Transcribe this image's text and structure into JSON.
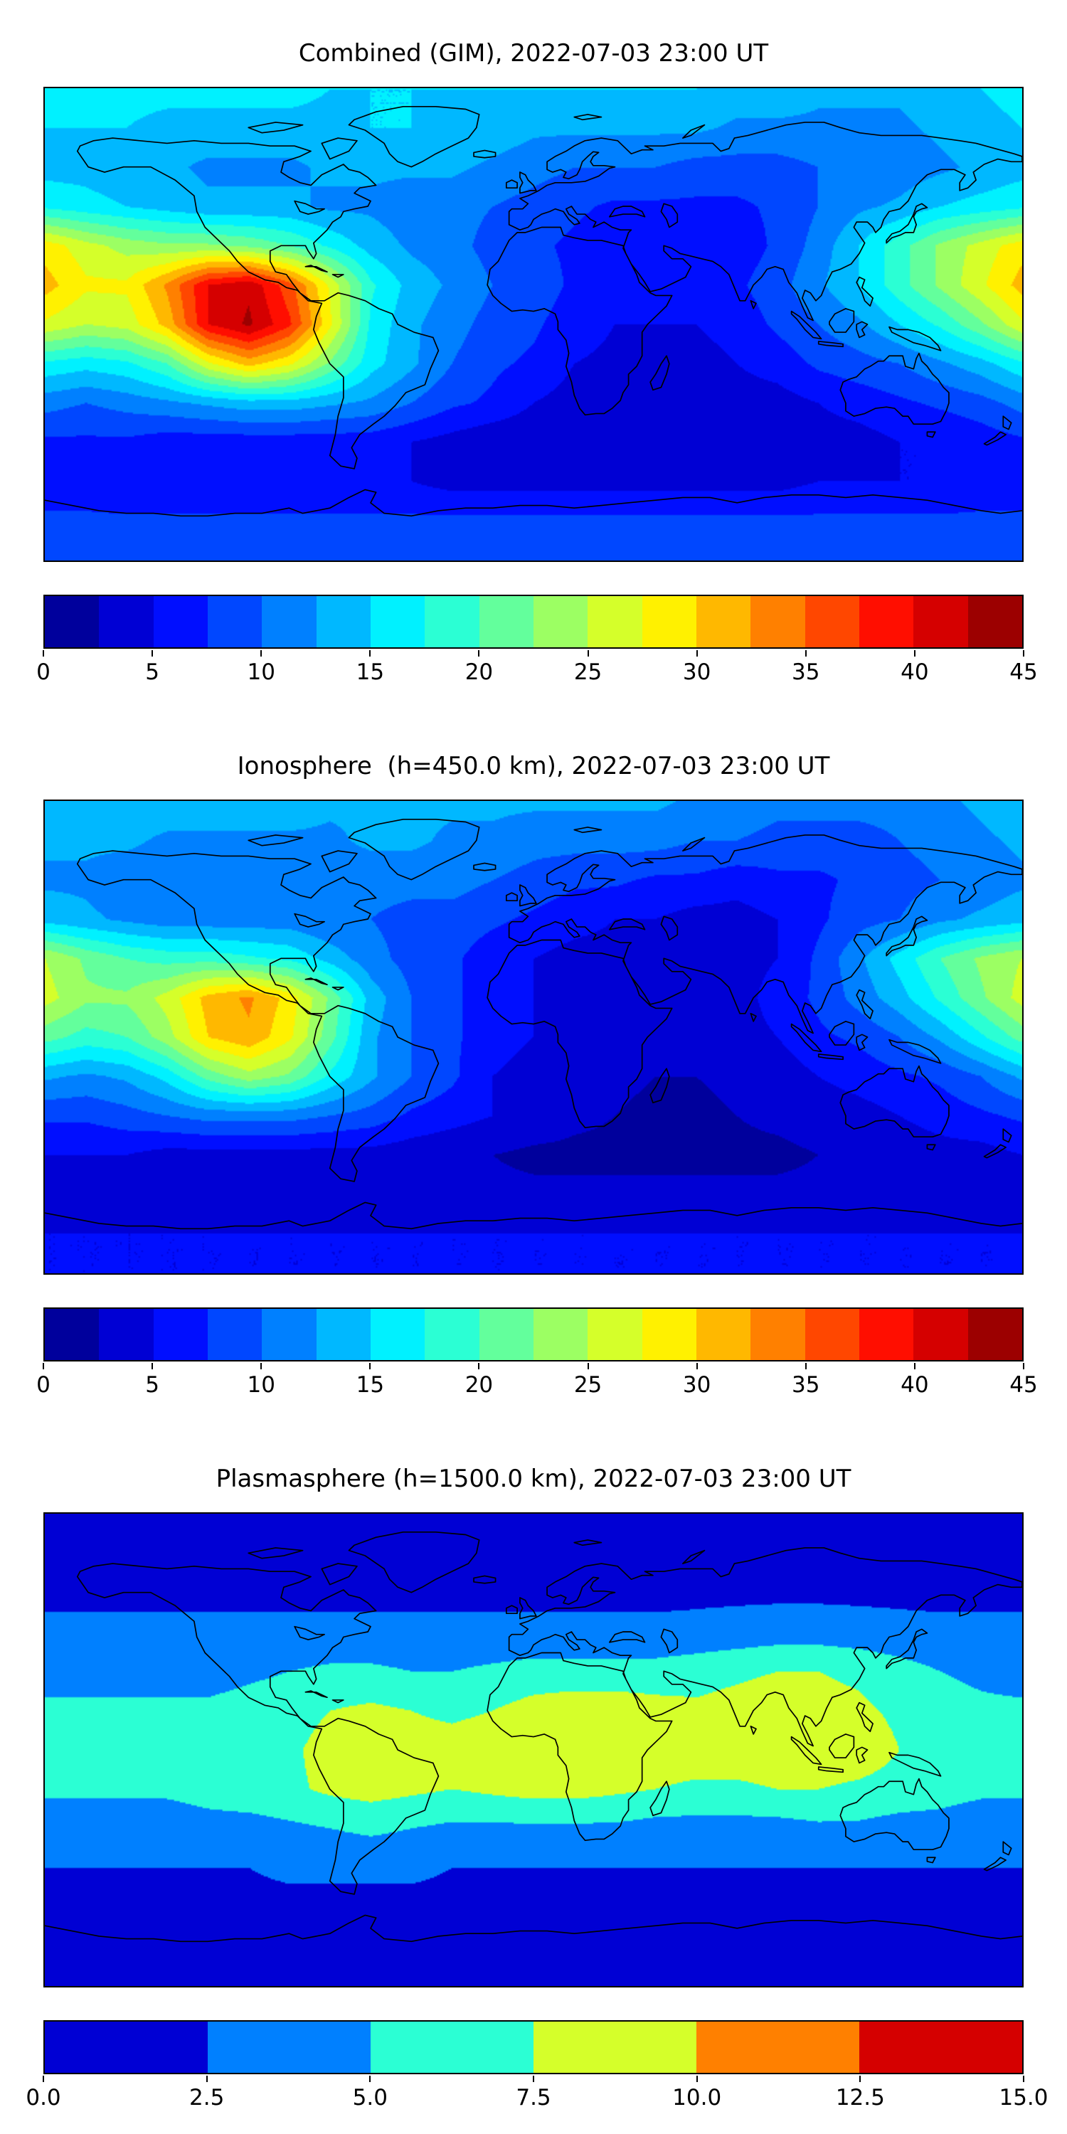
{
  "figure": {
    "background": "#ffffff",
    "text_color": "#000000",
    "frame_color": "#000000",
    "coastline_color": "#000000",
    "colormap": "jet"
  },
  "chart_data": [
    {
      "type": "heatmap",
      "title": "Combined (GIM), 2022-07-03 23:00 UT",
      "colormap": "jet",
      "projection": "world equirectangular",
      "vmin": 0,
      "vmax": 45,
      "levels": 18,
      "xlabel": "",
      "ylabel": "",
      "legend_position": "colorbar-bottom",
      "colorbar_ticks": {
        "values": [
          0,
          5,
          10,
          15,
          20,
          25,
          30,
          35,
          40,
          45
        ],
        "labels": [
          "0",
          "5",
          "10",
          "15",
          "20",
          "25",
          "30",
          "35",
          "40",
          "45"
        ]
      },
      "lons": [
        -180,
        -165,
        -150,
        -135,
        -120,
        -105,
        -90,
        -75,
        -60,
        -45,
        -30,
        -15,
        0,
        15,
        30,
        45,
        60,
        75,
        90,
        105,
        120,
        135,
        150,
        165,
        180
      ],
      "lats": [
        90,
        75,
        60,
        45,
        30,
        15,
        0,
        -15,
        -30,
        -45,
        -60,
        -75,
        -90
      ],
      "values": [
        [
          16,
          16,
          16,
          16,
          16,
          16,
          16,
          15,
          15,
          15,
          15,
          15,
          15,
          15,
          15,
          15,
          15,
          14,
          14,
          13,
          13,
          13,
          14,
          15,
          16
        ],
        [
          15,
          15,
          15,
          14,
          14,
          14,
          14,
          14,
          15,
          15,
          14,
          14,
          13,
          13,
          13,
          13,
          13,
          12,
          12,
          12,
          12,
          12,
          13,
          14,
          15
        ],
        [
          14,
          14,
          13,
          13,
          12,
          12,
          12,
          13,
          13,
          13,
          13,
          12,
          11,
          10,
          10,
          10,
          9,
          9,
          9,
          10,
          10,
          11,
          12,
          13,
          14
        ],
        [
          17,
          16,
          15,
          14,
          13,
          13,
          13,
          12,
          12,
          11,
          11,
          10,
          9,
          8,
          7,
          7,
          7,
          7,
          8,
          10,
          12,
          13,
          15,
          16,
          17
        ],
        [
          29,
          26,
          24,
          23,
          23,
          22,
          20,
          17,
          14,
          12,
          11,
          9,
          8,
          7,
          6,
          6,
          6,
          6,
          8,
          11,
          15,
          19,
          23,
          26,
          29
        ],
        [
          31,
          28,
          28,
          33,
          40,
          42,
          36,
          27,
          18,
          14,
          12,
          10,
          9,
          7,
          6,
          6,
          6,
          7,
          9,
          12,
          15,
          19,
          23,
          27,
          31
        ],
        [
          27,
          25,
          26,
          31,
          40,
          43,
          38,
          28,
          17,
          13,
          11,
          9,
          8,
          6,
          5,
          5,
          5,
          6,
          8,
          10,
          12,
          15,
          18,
          22,
          27
        ],
        [
          17,
          16,
          17,
          20,
          27,
          31,
          28,
          22,
          16,
          13,
          10,
          8,
          7,
          5,
          4.5,
          4,
          4,
          5,
          6,
          8,
          9,
          10,
          12,
          14,
          17
        ],
        [
          11,
          10,
          11,
          12,
          13,
          14,
          14,
          13,
          12,
          10,
          8,
          7,
          5,
          4,
          4,
          3,
          3,
          4,
          4,
          5,
          6,
          7,
          8,
          9,
          11
        ],
        [
          7,
          7,
          7,
          6,
          6,
          6,
          6,
          6,
          6,
          5,
          4,
          3,
          3,
          3,
          3,
          2.5,
          2.5,
          3,
          3,
          4,
          4,
          5,
          5,
          6,
          7
        ],
        [
          6,
          6,
          5,
          5,
          5,
          5,
          5,
          5,
          5,
          5,
          4,
          4,
          4,
          4,
          4,
          4,
          4,
          4,
          4,
          5,
          5,
          5,
          5,
          6,
          6
        ],
        [
          8,
          8,
          8,
          8,
          8,
          8,
          8,
          8,
          8,
          8,
          8,
          8,
          8,
          8,
          8,
          8,
          8,
          8,
          8,
          8,
          8,
          8,
          8,
          8,
          8
        ],
        [
          9,
          9,
          9,
          9,
          9,
          9,
          9,
          9,
          9,
          9,
          9,
          9,
          9,
          9,
          9,
          9,
          9,
          9,
          9,
          9,
          9,
          9,
          9,
          9,
          9
        ]
      ]
    },
    {
      "type": "heatmap",
      "title": "Ionosphere  (h=450.0 km), 2022-07-03 23:00 UT",
      "colormap": "jet",
      "projection": "world equirectangular",
      "vmin": 0,
      "vmax": 45,
      "levels": 18,
      "xlabel": "",
      "ylabel": "",
      "legend_position": "colorbar-bottom",
      "colorbar_ticks": {
        "values": [
          0,
          5,
          10,
          15,
          20,
          25,
          30,
          35,
          40,
          45
        ],
        "labels": [
          "0",
          "5",
          "10",
          "15",
          "20",
          "25",
          "30",
          "35",
          "40",
          "45"
        ]
      },
      "lons": [
        -180,
        -165,
        -150,
        -135,
        -120,
        -105,
        -90,
        -75,
        -60,
        -45,
        -30,
        -15,
        0,
        15,
        30,
        45,
        60,
        75,
        90,
        105,
        120,
        135,
        150,
        165,
        180
      ],
      "lats": [
        90,
        75,
        60,
        45,
        30,
        15,
        0,
        -15,
        -30,
        -45,
        -60,
        -75,
        -90
      ],
      "values": [
        [
          14,
          14,
          14,
          14,
          14,
          14,
          14,
          13,
          13,
          13,
          13,
          13,
          13,
          13,
          13,
          13,
          12,
          12,
          11,
          11,
          11,
          11,
          12,
          13,
          14
        ],
        [
          13,
          13,
          13,
          12,
          12,
          12,
          12,
          12,
          13,
          13,
          12,
          12,
          11,
          11,
          11,
          11,
          10,
          10,
          9,
          9,
          9,
          10,
          11,
          12,
          13
        ],
        [
          12,
          12,
          11,
          11,
          10,
          10,
          10,
          11,
          11,
          11,
          11,
          10,
          9,
          8,
          8,
          7,
          7,
          6,
          7,
          7,
          8,
          9,
          10,
          11,
          12
        ],
        [
          14,
          13,
          12,
          11,
          11,
          11,
          11,
          10,
          10,
          9,
          9,
          8,
          7,
          6,
          5,
          5,
          4,
          4,
          5,
          7,
          9,
          10,
          12,
          13,
          14
        ],
        [
          25,
          22,
          20,
          19,
          19,
          18,
          17,
          14,
          11,
          9,
          8,
          6,
          5,
          4,
          4,
          3.5,
          3.5,
          4,
          5,
          8,
          12,
          16,
          20,
          23,
          25
        ],
        [
          26,
          23,
          23,
          26,
          31,
          33,
          29,
          22,
          14,
          10,
          8,
          6,
          5,
          4,
          3.5,
          3,
          3,
          4,
          6,
          8,
          11,
          14,
          18,
          22,
          26
        ],
        [
          21,
          19,
          20,
          24,
          30,
          32,
          28,
          21,
          13,
          10,
          8,
          6,
          5,
          4,
          3,
          3,
          3,
          4,
          5,
          7,
          8,
          10,
          13,
          17,
          21
        ],
        [
          13,
          12,
          13,
          16,
          21,
          24,
          22,
          17,
          13,
          10,
          8,
          5,
          4,
          3.5,
          3,
          2.5,
          2.5,
          3,
          3.5,
          5,
          6,
          7,
          8,
          10,
          13
        ],
        [
          8,
          8,
          9,
          10,
          11,
          11,
          11,
          10,
          9,
          7,
          6,
          5,
          4,
          3,
          2.5,
          2,
          2,
          2.5,
          3,
          3.5,
          4,
          5,
          6,
          7,
          8
        ],
        [
          5,
          5,
          5,
          4,
          4,
          4,
          4,
          4,
          4,
          3.5,
          3,
          2.5,
          2,
          2,
          2,
          2,
          2,
          2,
          2,
          2.5,
          3,
          3.5,
          4,
          4,
          5
        ],
        [
          4,
          4,
          4,
          3.5,
          3.5,
          3.5,
          3.5,
          3.5,
          3.5,
          3.5,
          3,
          3,
          3,
          3,
          3,
          3,
          3,
          3,
          3,
          3,
          3.5,
          3.5,
          4,
          4,
          4
        ],
        [
          5,
          5,
          5,
          5,
          5,
          5,
          5,
          5,
          5,
          5,
          5,
          5,
          5,
          5,
          5,
          5,
          5,
          5,
          5,
          5,
          5,
          5,
          5,
          5,
          5
        ],
        [
          5,
          5,
          5,
          5,
          5,
          5,
          5,
          5,
          5,
          5,
          5,
          5,
          5,
          5,
          5,
          5,
          5,
          5,
          5,
          5,
          5,
          5,
          5,
          5,
          5
        ]
      ]
    },
    {
      "type": "heatmap",
      "title": "Plasmasphere (h=1500.0 km), 2022-07-03 23:00 UT",
      "colormap": "jet",
      "projection": "world equirectangular",
      "vmin": 0,
      "vmax": 15,
      "levels": 6,
      "xlabel": "",
      "ylabel": "",
      "legend_position": "colorbar-bottom",
      "colorbar_ticks": {
        "values": [
          0,
          2.5,
          5,
          7.5,
          10,
          12.5,
          15
        ],
        "labels": [
          "0.0",
          "2.5",
          "5.0",
          "7.5",
          "10.0",
          "12.5",
          "15.0"
        ]
      },
      "lons": [
        -180,
        -165,
        -150,
        -135,
        -120,
        -105,
        -90,
        -75,
        -60,
        -45,
        -30,
        -15,
        0,
        15,
        30,
        45,
        60,
        75,
        90,
        105,
        120,
        135,
        150,
        165,
        180
      ],
      "lats": [
        90,
        75,
        60,
        45,
        30,
        15,
        0,
        -15,
        -30,
        -45,
        -60,
        -75,
        -90
      ],
      "values": [
        [
          1.5,
          1.5,
          1.5,
          1.5,
          1.5,
          1.5,
          1.5,
          1.5,
          1.5,
          1.5,
          1.5,
          1.5,
          1.5,
          1.5,
          1.5,
          1.5,
          1.5,
          1.5,
          1.5,
          1.5,
          1.5,
          1.5,
          1.5,
          1.5,
          1.5
        ],
        [
          1.5,
          1.5,
          1.5,
          1.5,
          1.5,
          1.5,
          1.5,
          1.5,
          1.5,
          1.5,
          1.5,
          1.5,
          1.5,
          1.5,
          1.5,
          1.5,
          1.5,
          1.5,
          1.5,
          1.5,
          1.5,
          1.5,
          1.5,
          1.5,
          1.5
        ],
        [
          2,
          2,
          2,
          2,
          2,
          2,
          2,
          2,
          2,
          2,
          2,
          2,
          2,
          2,
          2,
          2,
          2,
          2,
          2,
          2,
          2,
          2,
          2,
          2,
          2
        ],
        [
          3,
          3,
          3,
          3,
          3,
          3,
          3,
          3,
          3,
          3,
          3,
          3,
          3,
          3,
          3,
          3,
          3.2,
          3.5,
          3.8,
          3.8,
          3.5,
          3.2,
          3,
          3,
          3
        ],
        [
          4,
          4,
          4,
          4,
          4,
          4.5,
          5,
          5.5,
          5.5,
          5,
          5,
          5.5,
          6,
          6,
          6,
          6,
          6.5,
          7,
          7.5,
          7.5,
          7,
          6,
          5,
          4.5,
          4
        ],
        [
          5.5,
          5.5,
          5.5,
          5.5,
          5.5,
          6,
          6.5,
          7.5,
          8,
          7.5,
          7,
          7.5,
          8.5,
          9,
          9,
          8.5,
          8,
          8.5,
          9,
          8.5,
          8,
          7,
          6,
          5.5,
          5.5
        ],
        [
          6,
          6,
          6,
          6,
          6.5,
          7,
          7,
          8.5,
          9,
          8.5,
          8.5,
          9,
          9.5,
          9.5,
          9.5,
          9,
          9,
          9,
          9.5,
          9.5,
          9,
          7.5,
          6.5,
          6,
          6
        ],
        [
          5.5,
          5.5,
          5.5,
          5.5,
          6,
          6.5,
          7,
          8,
          8.5,
          8,
          7.5,
          8,
          8.5,
          8.5,
          8,
          7.5,
          7,
          7,
          7.5,
          7.5,
          7,
          6.5,
          6,
          5.5,
          5.5
        ],
        [
          3.5,
          3.5,
          3.5,
          3.5,
          4,
          4,
          4.5,
          5,
          5.5,
          5,
          4.5,
          4.5,
          4.5,
          4.5,
          4.5,
          4,
          4,
          4,
          4,
          4.5,
          4.5,
          4,
          4,
          3.5,
          3.5
        ],
        [
          2.5,
          2.5,
          2.5,
          2.5,
          2.5,
          2.5,
          3,
          3,
          3,
          3,
          2.5,
          2.5,
          2.5,
          2.5,
          2.5,
          2.5,
          2.5,
          2.5,
          2.5,
          2.5,
          2.5,
          2.5,
          2.5,
          2.5,
          2.5
        ],
        [
          1.8,
          1.8,
          1.8,
          1.8,
          1.8,
          1.8,
          1.8,
          1.8,
          1.8,
          1.8,
          1.8,
          1.8,
          1.8,
          1.8,
          1.8,
          1.8,
          1.8,
          1.8,
          1.8,
          1.8,
          1.8,
          1.8,
          1.8,
          1.8,
          1.8
        ],
        [
          1.5,
          1.5,
          1.5,
          1.5,
          1.5,
          1.5,
          1.5,
          1.5,
          1.5,
          1.5,
          1.5,
          1.5,
          1.5,
          1.5,
          1.5,
          1.5,
          1.5,
          1.5,
          1.5,
          1.5,
          1.5,
          1.5,
          1.5,
          1.5,
          1.5
        ],
        [
          1.5,
          1.5,
          1.5,
          1.5,
          1.5,
          1.5,
          1.5,
          1.5,
          1.5,
          1.5,
          1.5,
          1.5,
          1.5,
          1.5,
          1.5,
          1.5,
          1.5,
          1.5,
          1.5,
          1.5,
          1.5,
          1.5,
          1.5,
          1.5,
          1.5
        ]
      ]
    }
  ]
}
